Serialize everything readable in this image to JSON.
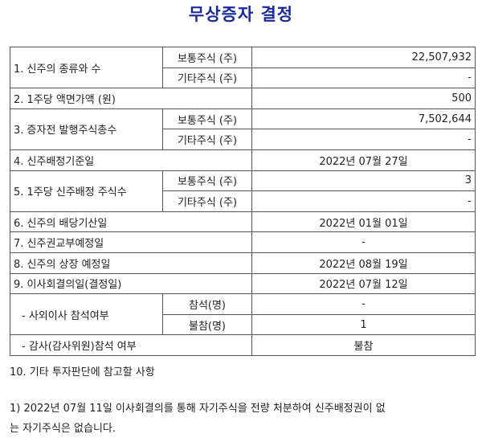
{
  "title": "무상증자 결정",
  "table": {
    "r1": {
      "label": "1. 신주의 종류와 수",
      "common_label": "보통주식 (주)",
      "common_value": "22,507,932",
      "other_label": "기타주식 (주)",
      "other_value": "-"
    },
    "r2": {
      "label": "2. 1주당 액면가액 (원)",
      "value": "500"
    },
    "r3": {
      "label": "3. 증자전 발행주식총수",
      "common_label": "보통주식 (주)",
      "common_value": "7,502,644",
      "other_label": "기타주식 (주)",
      "other_value": "-"
    },
    "r4": {
      "label": "4. 신주배정기준일",
      "value": "2022년 07월 27일"
    },
    "r5": {
      "label": "5. 1주당 신주배정 주식수",
      "common_label": "보통주식 (주)",
      "common_value": "3",
      "other_label": "기타주식 (주)",
      "other_value": "-"
    },
    "r6": {
      "label": "6. 신주의 배당기산일",
      "value": "2022년 01월 01일"
    },
    "r7": {
      "label": "7. 신주권교부예정일",
      "value": "-"
    },
    "r8": {
      "label": "8. 신주의 상장 예정일",
      "value": "2022년 08월 19일"
    },
    "r9": {
      "label": "9. 이사회결의일(결정일)",
      "value": "2022년 07월 12일"
    },
    "outside": {
      "label": "- 사외이사 참석여부",
      "present_label": "참석(명)",
      "present_value": "-",
      "absent_label": "불참(명)",
      "absent_value": "1"
    },
    "auditor": {
      "label": "- 감사(감사위원)참석 여부",
      "value": "불참"
    }
  },
  "notes": {
    "heading": "10. 기타 투자판단에 참고할 사항",
    "line1": "1) 2022년 07월 11일 이사회결의를 통해 자기주식을 전량 처분하여 신주배정권이 없",
    "line2": "는 자기주식은 없습니다."
  }
}
